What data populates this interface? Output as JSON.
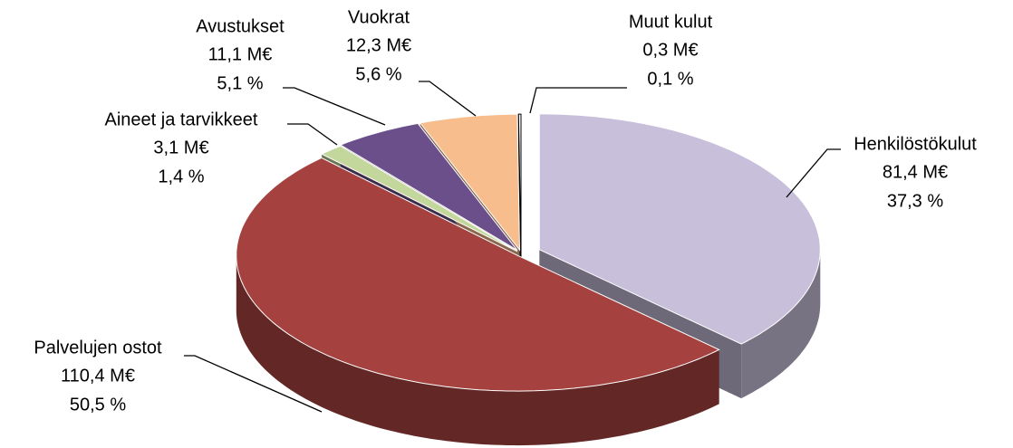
{
  "chart_data": {
    "type": "pie3d",
    "categories": [
      "Henkilöstökulut",
      "Palvelujen ostot",
      "Aineet ja tarvikkeet",
      "Avustukset",
      "Vuokrat",
      "Muut kulut"
    ],
    "values": [
      81.4,
      110.4,
      3.1,
      11.1,
      12.3,
      0.3
    ],
    "value_labels": [
      "81,4 M€",
      "110,4 M€",
      "3,1 M€",
      "11,1 M€",
      "12,3 M€",
      "0,3 M€"
    ],
    "percents": [
      37.3,
      50.5,
      1.4,
      5.1,
      5.6,
      0.1
    ],
    "percent_labels": [
      "37,3 %",
      "50,5 %",
      "1,4 %",
      "5,1 %",
      "5,6 %",
      "0,1 %"
    ],
    "colors": [
      "#c8bfdb",
      "#a5423f",
      "#c3d69b",
      "#6b4f8a",
      "#f7bd8d",
      "#ffffff"
    ]
  }
}
